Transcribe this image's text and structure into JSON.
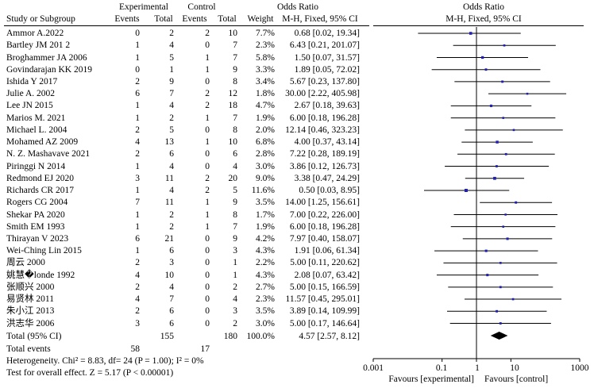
{
  "header": {
    "experimental": "Experimental",
    "control": "Control",
    "or_title": "Odds Ratio",
    "col_study": "Study or Subgroup",
    "col_events": "Events",
    "col_total": "Total",
    "col_weight": "Weight",
    "col_method": "M-H, Fixed, 95% CI",
    "plot_title": "Odds Ratio",
    "plot_method": "M-H, Fixed,  95% CI"
  },
  "total": {
    "label": "Total (95% CI)",
    "exp_total": "155",
    "ctrl_total": "180",
    "weight": "100.0%",
    "ci": "4.57 [2.57, 8.12]"
  },
  "events": {
    "label": "Total events",
    "exp": "58",
    "ctrl": "17"
  },
  "footer": {
    "heterogeneity": "Heterogeneity. Chi² = 8.83, df= 24 (P = 1.00); I² = 0%",
    "overall": "Test for overall effect. Z = 5.17 (P < 0.00001)"
  },
  "axis": {
    "favours_left": "Favours [experimental]",
    "favours_right": "Favours [control]"
  },
  "chart_data": {
    "type": "forest",
    "title": "Odds Ratio M-H, Fixed, 95% CI",
    "xscale": "log",
    "xlim": [
      0.001,
      1000
    ],
    "xticks": [
      "0.001",
      "0.1",
      "1",
      "10",
      "1000"
    ],
    "xtick_values": [
      0.001,
      0.1,
      1,
      10,
      1000
    ],
    "colors": {
      "marker": "#1f1fb4",
      "line": "#000000",
      "diamond": "#000000"
    },
    "studies": [
      {
        "name": "Ammor A.2022",
        "e_ev": 0,
        "e_tot": 2,
        "c_ev": 2,
        "c_tot": 10,
        "weight": "7.7%",
        "or": 0.68,
        "lo": 0.02,
        "hi": 19.34,
        "ci": "0.68 [0.02, 19.34]"
      },
      {
        "name": "Bartley JM 201 2",
        "e_ev": 1,
        "e_tot": 4,
        "c_ev": 0,
        "c_tot": 7,
        "weight": "2.3%",
        "or": 6.43,
        "lo": 0.21,
        "hi": 201.07,
        "ci": "6.43 [0.21, 201.07]"
      },
      {
        "name": "Broghammer JA 2006",
        "e_ev": 1,
        "e_tot": 5,
        "c_ev": 1,
        "c_tot": 7,
        "weight": "5.8%",
        "or": 1.5,
        "lo": 0.07,
        "hi": 31.57,
        "ci": "1.50 [0.07, 31.57]"
      },
      {
        "name": "Govindarajan KK 2019",
        "e_ev": 0,
        "e_tot": 1,
        "c_ev": 1,
        "c_tot": 9,
        "weight": "3.3%",
        "or": 1.89,
        "lo": 0.05,
        "hi": 72.02,
        "ci": "1.89 [0.05, 72.02]"
      },
      {
        "name": "Ishida Y 2017",
        "e_ev": 2,
        "e_tot": 9,
        "c_ev": 0,
        "c_tot": 8,
        "weight": "3.4%",
        "or": 5.67,
        "lo": 0.23,
        "hi": 137.8,
        "ci": "5.67 [0.23, 137.80]"
      },
      {
        "name": "Julie A. 2002",
        "e_ev": 6,
        "e_tot": 7,
        "c_ev": 2,
        "c_tot": 12,
        "weight": "1.8%",
        "or": 30.0,
        "lo": 2.22,
        "hi": 405.98,
        "ci": "30.00 [2.22, 405.98]"
      },
      {
        "name": "Lee JN 2015",
        "e_ev": 1,
        "e_tot": 4,
        "c_ev": 2,
        "c_tot": 18,
        "weight": "4.7%",
        "or": 2.67,
        "lo": 0.18,
        "hi": 39.63,
        "ci": "2.67 [0.18, 39.63]"
      },
      {
        "name": "Marios M. 2021",
        "e_ev": 1,
        "e_tot": 2,
        "c_ev": 1,
        "c_tot": 7,
        "weight": "1.9%",
        "or": 6.0,
        "lo": 0.18,
        "hi": 196.28,
        "ci": "6.00 [0.18, 196.28]"
      },
      {
        "name": "Michael L. 2004",
        "e_ev": 2,
        "e_tot": 5,
        "c_ev": 0,
        "c_tot": 8,
        "weight": "2.0%",
        "or": 12.14,
        "lo": 0.46,
        "hi": 323.23,
        "ci": "12.14 [0.46, 323.23]"
      },
      {
        "name": "Mohamed AZ 2009",
        "e_ev": 4,
        "e_tot": 13,
        "c_ev": 1,
        "c_tot": 10,
        "weight": "6.8%",
        "or": 4.0,
        "lo": 0.37,
        "hi": 43.14,
        "ci": "4.00 [0.37, 43.14]"
      },
      {
        "name": "N. Z. Mashavave 2021",
        "e_ev": 2,
        "e_tot": 6,
        "c_ev": 0,
        "c_tot": 6,
        "weight": "2.8%",
        "or": 7.22,
        "lo": 0.28,
        "hi": 189.19,
        "ci": "7.22 [0.28, 189.19]"
      },
      {
        "name": "Piringgi N 2014",
        "e_ev": 1,
        "e_tot": 4,
        "c_ev": 0,
        "c_tot": 4,
        "weight": "3.0%",
        "or": 3.86,
        "lo": 0.12,
        "hi": 126.73,
        "ci": "3.86 [0.12, 126.73]"
      },
      {
        "name": "Redmond EJ 2020",
        "e_ev": 3,
        "e_tot": 11,
        "c_ev": 2,
        "c_tot": 20,
        "weight": "9.0%",
        "or": 3.38,
        "lo": 0.47,
        "hi": 24.29,
        "ci": "3.38 [0.47, 24.29]"
      },
      {
        "name": "Richards CR 2017",
        "e_ev": 1,
        "e_tot": 4,
        "c_ev": 2,
        "c_tot": 5,
        "weight": "11.6%",
        "or": 0.5,
        "lo": 0.03,
        "hi": 8.95,
        "ci": "0.50 [0.03, 8.95]"
      },
      {
        "name": "Rogers CG 2004",
        "e_ev": 7,
        "e_tot": 11,
        "c_ev": 1,
        "c_tot": 9,
        "weight": "3.5%",
        "or": 14.0,
        "lo": 1.25,
        "hi": 156.61,
        "ci": "14.00 [1.25, 156.61]"
      },
      {
        "name": "Shekar PA 2020",
        "e_ev": 1,
        "e_tot": 2,
        "c_ev": 1,
        "c_tot": 8,
        "weight": "1.7%",
        "or": 7.0,
        "lo": 0.22,
        "hi": 226.0,
        "ci": "7.00 [0.22, 226.00]"
      },
      {
        "name": "Smith EM 1993",
        "e_ev": 1,
        "e_tot": 2,
        "c_ev": 1,
        "c_tot": 7,
        "weight": "1.9%",
        "or": 6.0,
        "lo": 0.18,
        "hi": 196.28,
        "ci": "6.00 [0.18, 196.28]"
      },
      {
        "name": "Thirayan V 2023",
        "e_ev": 6,
        "e_tot": 21,
        "c_ev": 0,
        "c_tot": 9,
        "weight": "4.2%",
        "or": 7.97,
        "lo": 0.4,
        "hi": 158.07,
        "ci": "7.97 [0.40, 158.07]"
      },
      {
        "name": "Wei-Ching Lin 2015",
        "e_ev": 1,
        "e_tot": 6,
        "c_ev": 0,
        "c_tot": 3,
        "weight": "4.3%",
        "or": 1.91,
        "lo": 0.06,
        "hi": 61.34,
        "ci": "1.91 [0.06, 61.34]"
      },
      {
        "name": "周云  2000",
        "e_ev": 2,
        "e_tot": 3,
        "c_ev": 0,
        "c_tot": 1,
        "weight": "2.2%",
        "or": 5.0,
        "lo": 0.11,
        "hi": 220.62,
        "ci": "5.00 [0.11, 220.62]"
      },
      {
        "name": "姚慧�londe 1992",
        "e_ev": 4,
        "e_tot": 10,
        "c_ev": 0,
        "c_tot": 1,
        "weight": "4.3%",
        "or": 2.08,
        "lo": 0.07,
        "hi": 63.42,
        "ci": "2.08 [0.07, 63.42]"
      },
      {
        "name": "张顺兴  2000",
        "e_ev": 2,
        "e_tot": 4,
        "c_ev": 0,
        "c_tot": 2,
        "weight": "2.7%",
        "or": 5.0,
        "lo": 0.15,
        "hi": 166.59,
        "ci": "5.00 [0.15, 166.59]"
      },
      {
        "name": "易贤林  2011",
        "e_ev": 4,
        "e_tot": 7,
        "c_ev": 0,
        "c_tot": 4,
        "weight": "2.3%",
        "or": 11.57,
        "lo": 0.45,
        "hi": 295.01,
        "ci": "11.57 [0.45, 295.01]"
      },
      {
        "name": "朱小江  2013",
        "e_ev": 2,
        "e_tot": 6,
        "c_ev": 0,
        "c_tot": 3,
        "weight": "3.5%",
        "or": 3.89,
        "lo": 0.14,
        "hi": 109.99,
        "ci": "3.89 [0.14, 109.99]"
      },
      {
        "name": "洪志华  2006",
        "e_ev": 3,
        "e_tot": 6,
        "c_ev": 0,
        "c_tot": 2,
        "weight": "3.0%",
        "or": 5.0,
        "lo": 0.17,
        "hi": 146.64,
        "ci": "5.00 [0.17, 146.64]"
      }
    ],
    "pooled": {
      "or": 4.57,
      "lo": 2.57,
      "hi": 8.12
    }
  }
}
